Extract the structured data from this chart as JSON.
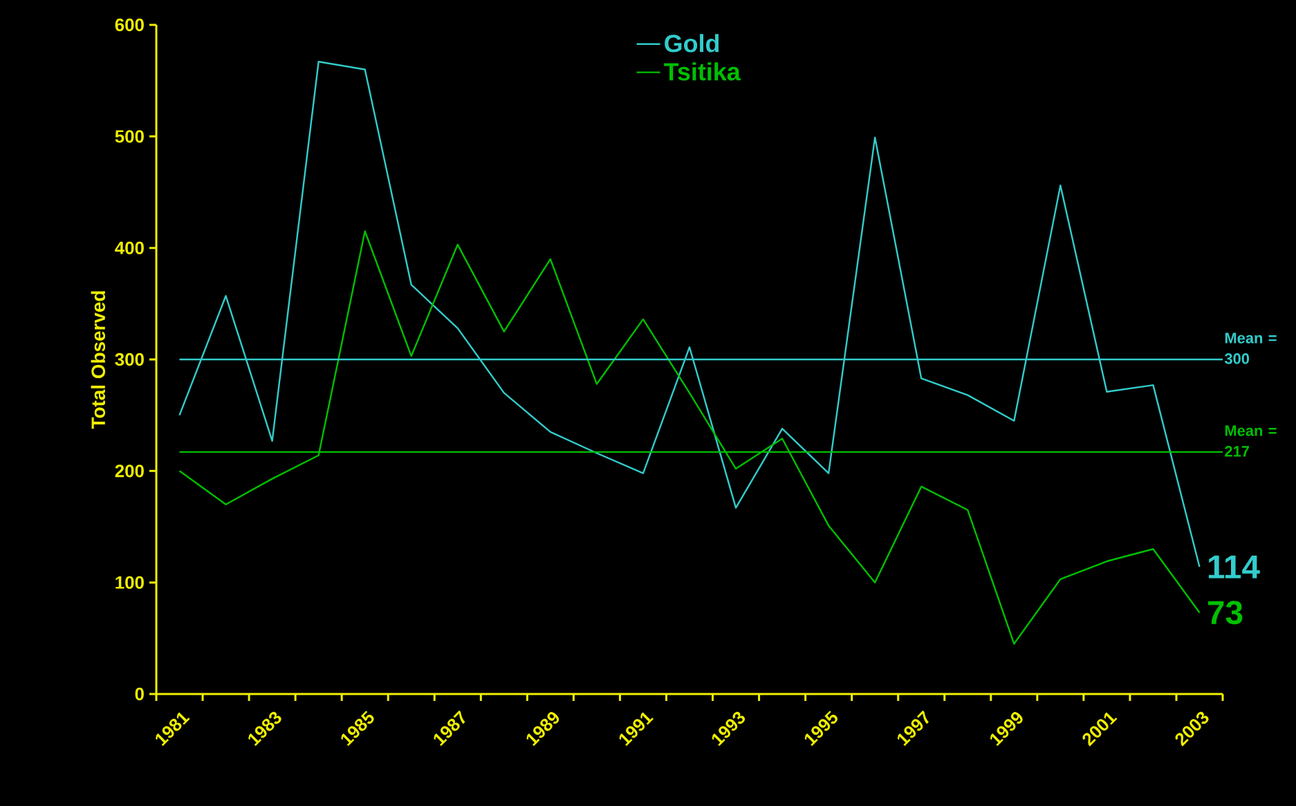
{
  "chart_data": {
    "type": "line",
    "ylabel": "Total Observed",
    "categories": [
      "1981",
      null,
      "1983",
      null,
      "1985",
      null,
      "1987",
      null,
      "1989",
      null,
      "1991",
      null,
      "1993",
      null,
      "1995",
      null,
      "1997",
      null,
      "1999",
      null,
      "2001",
      null,
      "2003"
    ],
    "series": [
      {
        "name": "Gold",
        "color": "#33cccc",
        "values": [
          250,
          357,
          227,
          567,
          560,
          367,
          328,
          270,
          235,
          216,
          198,
          311,
          167,
          238,
          198,
          499,
          283,
          268,
          245,
          456,
          271,
          277,
          114
        ],
        "value_labels": [
          null,
          null,
          null,
          null,
          null,
          null,
          null,
          null,
          null,
          null,
          null,
          null,
          null,
          null,
          null,
          null,
          null,
          null,
          null,
          null,
          null,
          null,
          "114"
        ]
      },
      {
        "name": "Tsitika",
        "color": "#00c000",
        "values": [
          200,
          170,
          193,
          214,
          415,
          303,
          403,
          325,
          390,
          278,
          336,
          270,
          202,
          229,
          151,
          100,
          186,
          165,
          45,
          103,
          119,
          130,
          73
        ],
        "value_labels": [
          null,
          null,
          null,
          null,
          null,
          null,
          null,
          null,
          null,
          null,
          null,
          null,
          null,
          null,
          null,
          null,
          null,
          null,
          null,
          null,
          null,
          null,
          "73"
        ]
      }
    ],
    "ylim": [
      0,
      600
    ],
    "yticks": [
      0,
      100,
      200,
      300,
      400,
      500,
      600
    ],
    "ref_lines": [
      {
        "axis": "y",
        "value": 300,
        "label": "Mean = 300",
        "color": "#33cccc"
      },
      {
        "axis": "y",
        "value": 217,
        "label": "Mean = 217",
        "color": "#00c000"
      }
    ],
    "legend": "top",
    "marker": "none",
    "line_style": "solid"
  }
}
